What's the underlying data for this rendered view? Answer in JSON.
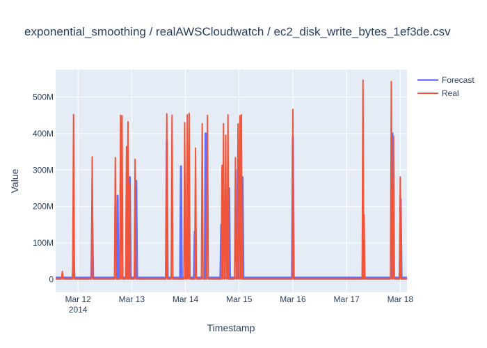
{
  "chart_data": {
    "type": "line",
    "title": "exponential_smoothing / realAWSCloudwatch / ec2_disk_write_bytes_1ef3de.csv",
    "xlabel": "Timestamp",
    "ylabel": "Value",
    "x_range": [
      "2014-03-11T14:00:00",
      "2014-03-18T03:00:00"
    ],
    "ylim": [
      -35000000,
      575000000
    ],
    "x_ticks": [
      {
        "value": "2014-03-12T00:00:00",
        "label": "Mar 12",
        "sublabel": "2014"
      },
      {
        "value": "2014-03-13T00:00:00",
        "label": "Mar 13",
        "sublabel": ""
      },
      {
        "value": "2014-03-14T00:00:00",
        "label": "Mar 14",
        "sublabel": ""
      },
      {
        "value": "2014-03-15T00:00:00",
        "label": "Mar 15",
        "sublabel": ""
      },
      {
        "value": "2014-03-16T00:00:00",
        "label": "Mar 16",
        "sublabel": ""
      },
      {
        "value": "2014-03-17T00:00:00",
        "label": "Mar 17",
        "sublabel": ""
      },
      {
        "value": "2014-03-18T00:00:00",
        "label": "Mar 18",
        "sublabel": ""
      }
    ],
    "y_ticks": [
      {
        "value": 0,
        "label": "0"
      },
      {
        "value": 100000000,
        "label": "100M"
      },
      {
        "value": 200000000,
        "label": "200M"
      },
      {
        "value": 300000000,
        "label": "300M"
      },
      {
        "value": 400000000,
        "label": "400M"
      },
      {
        "value": 500000000,
        "label": "500M"
      }
    ],
    "grid": true,
    "legend_position": "top-right",
    "baseline_value": 1500000,
    "series": [
      {
        "name": "Forecast",
        "color": "#636efa",
        "baseline": 5000000,
        "spikes": [
          [
            "2014-03-11T22:00:00",
            70000000
          ],
          [
            "2014-03-12T06:20:00",
            165000000
          ],
          [
            "2014-03-12T17:40:00",
            230000000
          ],
          [
            "2014-03-12T21:50:00",
            240000000
          ],
          [
            "2014-03-12T23:10:00",
            280000000
          ],
          [
            "2014-03-13T02:00:00",
            270000000
          ],
          [
            "2014-03-13T15:40:00",
            380000000
          ],
          [
            "2014-03-13T22:00:00",
            310000000
          ],
          [
            "2014-03-14T01:00:00",
            330000000
          ],
          [
            "2014-03-14T04:10:00",
            130000000
          ],
          [
            "2014-03-14T09:00:00",
            400000000
          ],
          [
            "2014-03-14T16:00:00",
            150000000
          ],
          [
            "2014-03-14T19:30:00",
            250000000
          ],
          [
            "2014-03-14T23:20:00",
            300000000
          ],
          [
            "2014-03-15T01:30:00",
            280000000
          ],
          [
            "2014-03-16T00:00:00",
            390000000
          ],
          [
            "2014-03-17T07:30:00",
            140000000
          ],
          [
            "2014-03-17T20:30:00",
            400000000
          ],
          [
            "2014-03-18T00:10:00",
            220000000
          ]
        ]
      },
      {
        "name": "Real",
        "color": "#ef553b",
        "baseline": 1500000,
        "spikes": [
          [
            "2014-03-11T17:00:00",
            22000000
          ],
          [
            "2014-03-11T22:00:00",
            452000000
          ],
          [
            "2014-03-12T06:20:00",
            336000000
          ],
          [
            "2014-03-12T16:40:00",
            334000000
          ],
          [
            "2014-03-12T19:00:00",
            450000000
          ],
          [
            "2014-03-12T19:40:00",
            449000000
          ],
          [
            "2014-03-12T21:40:00",
            364000000
          ],
          [
            "2014-03-12T22:20:00",
            432000000
          ],
          [
            "2014-03-12T23:00:00",
            263000000
          ],
          [
            "2014-03-13T01:30:00",
            329000000
          ],
          [
            "2014-03-13T15:40:00",
            454000000
          ],
          [
            "2014-03-13T18:00:00",
            450000000
          ],
          [
            "2014-03-13T23:40:00",
            430000000
          ],
          [
            "2014-03-14T00:50:00",
            451000000
          ],
          [
            "2014-03-14T01:40:00",
            455000000
          ],
          [
            "2014-03-14T04:30:00",
            360000000
          ],
          [
            "2014-03-14T07:30:00",
            427000000
          ],
          [
            "2014-03-14T09:50:00",
            450000000
          ],
          [
            "2014-03-14T16:20:00",
            313000000
          ],
          [
            "2014-03-14T17:00:00",
            427000000
          ],
          [
            "2014-03-14T18:00:00",
            395000000
          ],
          [
            "2014-03-14T19:00:00",
            451000000
          ],
          [
            "2014-03-14T22:20:00",
            334000000
          ],
          [
            "2014-03-14T23:30:00",
            426000000
          ],
          [
            "2014-03-15T00:20:00",
            449000000
          ],
          [
            "2014-03-15T01:00:00",
            451000000
          ],
          [
            "2014-03-16T00:00:00",
            466000000
          ],
          [
            "2014-03-17T07:20:00",
            546000000
          ],
          [
            "2014-03-17T07:50:00",
            178000000
          ],
          [
            "2014-03-17T20:00:00",
            542000000
          ],
          [
            "2014-03-17T21:00:00",
            393000000
          ],
          [
            "2014-03-18T00:00:00",
            281000000
          ]
        ]
      }
    ]
  }
}
